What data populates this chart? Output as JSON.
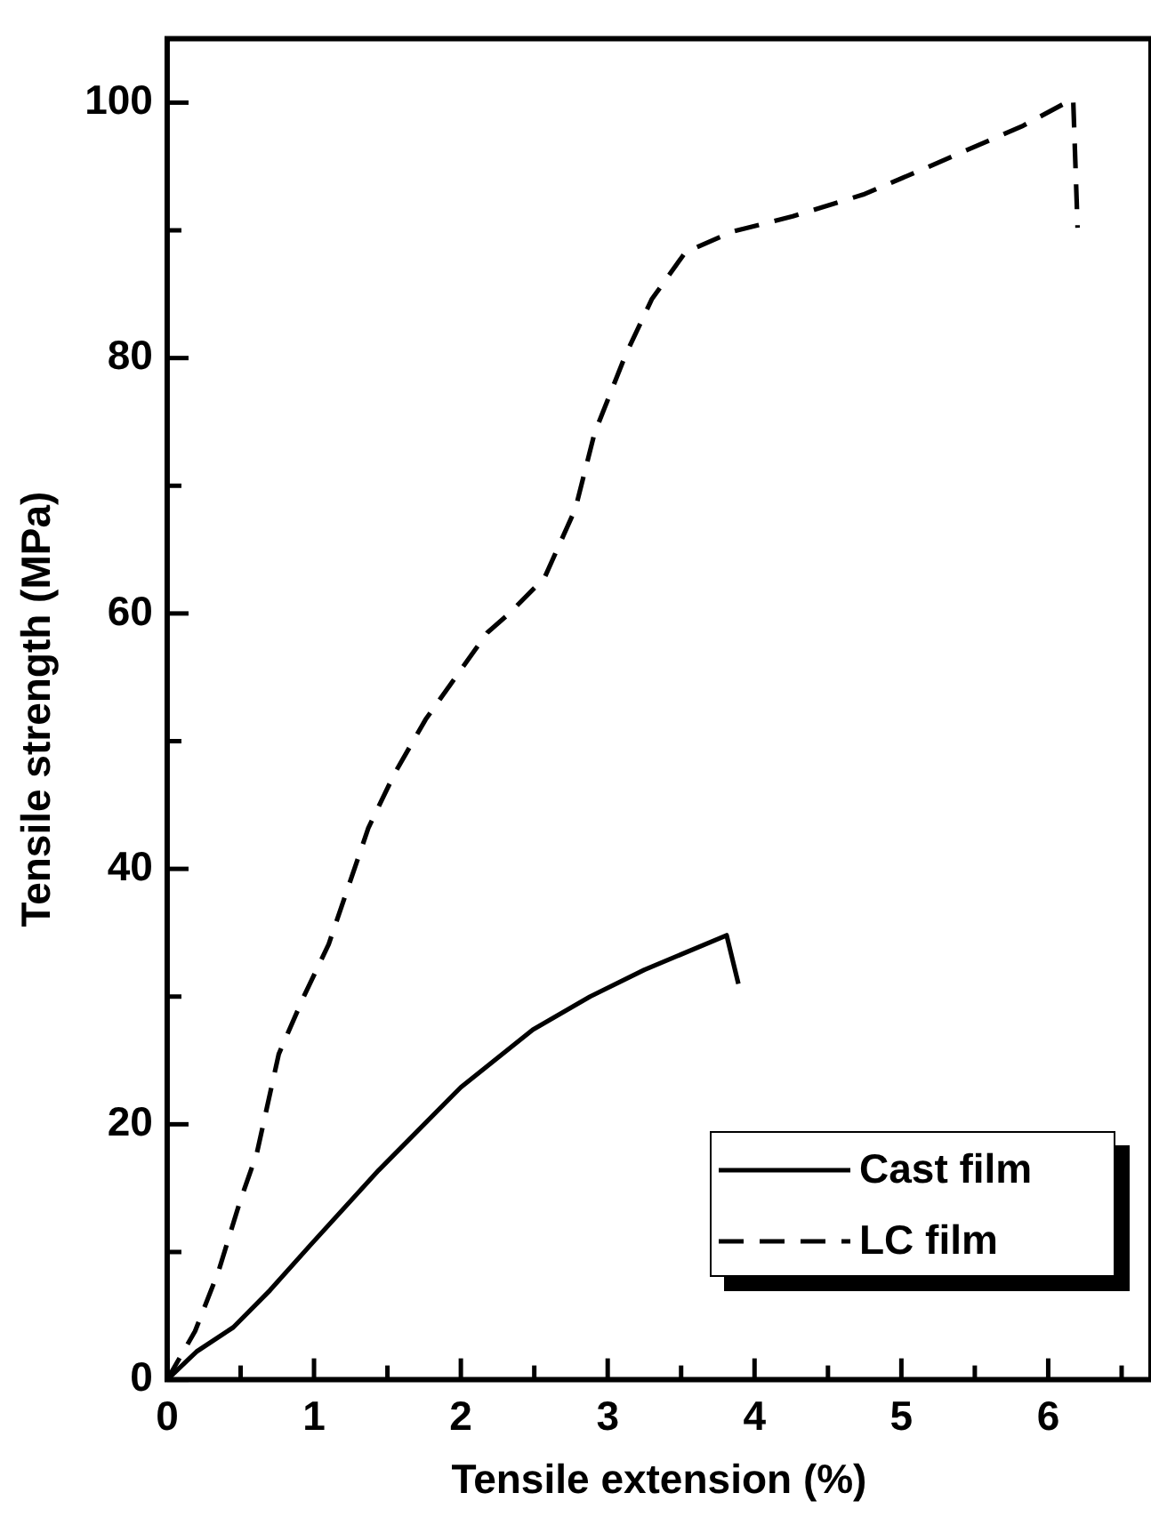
{
  "chart_data": {
    "type": "line",
    "xlabel": "Tensile extension (%)",
    "ylabel": "Tensile strength (MPa)",
    "xlim": [
      0,
      6.7
    ],
    "ylim": [
      0,
      105
    ],
    "xticks": [
      0,
      {
        "value": 0.5,
        "label": null
      },
      1,
      {
        "value": 1.5,
        "label": null
      },
      2,
      {
        "value": 2.5,
        "label": null
      },
      3,
      {
        "value": 3.5,
        "label": null
      },
      4,
      {
        "value": 4.5,
        "label": null
      },
      5,
      {
        "value": 5.5,
        "label": null
      },
      6,
      {
        "value": 6.5,
        "label": null
      }
    ],
    "yticks": [
      0,
      {
        "value": 10,
        "label": null
      },
      20,
      {
        "value": 30,
        "label": null
      },
      40,
      {
        "value": 50,
        "label": null
      },
      60,
      {
        "value": 70,
        "label": null
      },
      80,
      {
        "value": 90,
        "label": null
      },
      100
    ],
    "grid": false,
    "legend": "bottom right",
    "marker": "none",
    "series": [
      {
        "name": "Cast film",
        "color": "#000000",
        "line_style": "solid",
        "x": [
          0,
          0.2,
          0.45,
          0.7,
          0.98,
          1.44,
          2.0,
          2.49,
          2.88,
          3.25,
          3.81,
          3.89
        ],
        "values": [
          0,
          2.2,
          4.1,
          7,
          10.6,
          16.4,
          22.9,
          27.4,
          30,
          32.1,
          34.8,
          31.0
        ]
      },
      {
        "name": "LC film",
        "color": "#000000",
        "line_style": "dashed",
        "x": [
          0,
          0.19,
          0.35,
          0.5,
          0.61,
          0.76,
          0.93,
          1.1,
          1.37,
          1.55,
          1.76,
          2.18,
          2.33,
          2.57,
          2.78,
          2.91,
          3.12,
          3.3,
          3.53,
          3.85,
          4.26,
          4.74,
          5.15,
          5.83,
          6.17,
          6.2
        ],
        "values": [
          0,
          3.8,
          8.5,
          14.1,
          17.7,
          25.5,
          30,
          34.1,
          43.2,
          47.5,
          51.7,
          58.5,
          60,
          62.8,
          68.2,
          74.1,
          80.2,
          84.6,
          88.3,
          89.9,
          91.1,
          92.8,
          94.8,
          98.2,
          100.3,
          90.2
        ]
      }
    ]
  }
}
